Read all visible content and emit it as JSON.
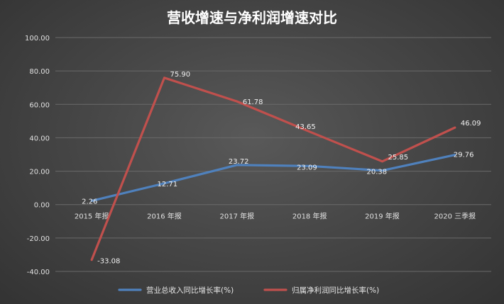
{
  "chart_data": {
    "type": "line",
    "title": "营收增速与净利润增速对比",
    "categories": [
      "2015 年报",
      "2016 年报",
      "2017 年报",
      "2018 年报",
      "2019 年报",
      "2020 三季报"
    ],
    "ylim": [
      -40,
      100
    ],
    "yticks": [
      "-40.00",
      "-20.00",
      "0.00",
      "20.00",
      "40.00",
      "60.00",
      "80.00",
      "100.00"
    ],
    "series": [
      {
        "name": "营业总收入同比增长率(%)",
        "color": "#4f81bd",
        "values": [
          2.26,
          12.71,
          23.72,
          23.09,
          20.38,
          29.76
        ],
        "labels": [
          "2.26",
          "12.71",
          "23.72",
          "23.09",
          "20.38",
          "29.76"
        ]
      },
      {
        "name": "归属净利润同比增长率(%)",
        "color": "#c0504d",
        "values": [
          -33.08,
          75.9,
          61.78,
          43.65,
          25.85,
          46.09
        ],
        "labels": [
          "-33.08",
          "75.90",
          "61.78",
          "43.65",
          "25.85",
          "46.09"
        ]
      }
    ],
    "grid": true,
    "legend": "bottom"
  }
}
